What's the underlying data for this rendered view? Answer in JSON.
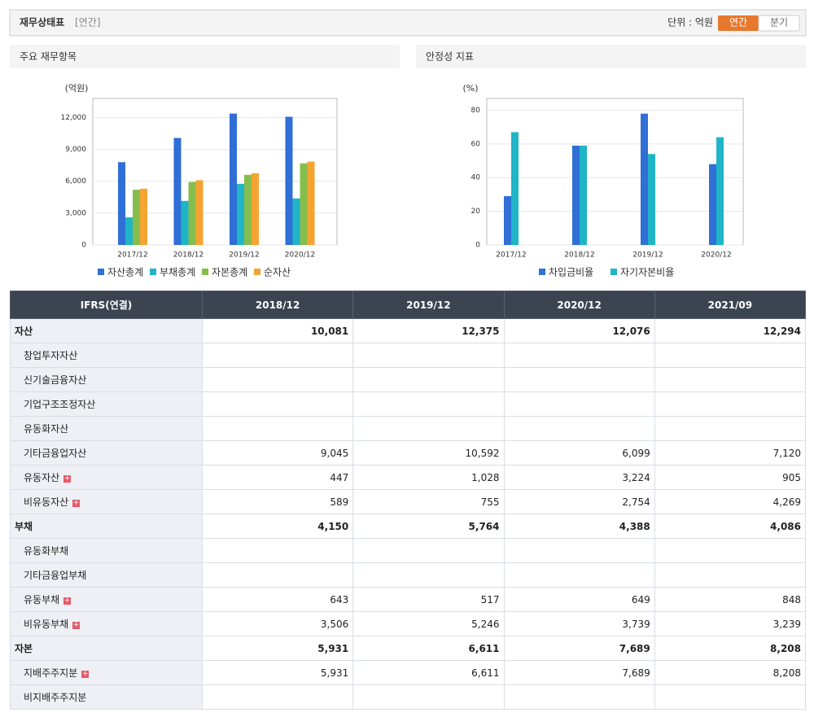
{
  "header": {
    "title": "재무상태표",
    "period": "[연간]",
    "unit": "단위 : 억원",
    "tabs": [
      "연간",
      "분기"
    ]
  },
  "chart_data": [
    {
      "type": "bar",
      "title": "주요 재무항목",
      "ylabel": "(억원)",
      "categories": [
        "2017/12",
        "2018/12",
        "2019/12",
        "2020/12"
      ],
      "series": [
        {
          "name": "자산총계",
          "color": "#2f6fd6",
          "values": [
            7800,
            10081,
            12375,
            12076
          ]
        },
        {
          "name": "부채총계",
          "color": "#1fb5c7",
          "values": [
            2600,
            4150,
            5764,
            4388
          ]
        },
        {
          "name": "자본총계",
          "color": "#86bd4d",
          "values": [
            5200,
            5931,
            6611,
            7689
          ]
        },
        {
          "name": "순자산",
          "color": "#f5a431",
          "values": [
            5300,
            6100,
            6750,
            7850
          ]
        }
      ],
      "ylim": [
        0,
        13800
      ],
      "yticks": [
        0,
        {
          "value": 3000,
          "label": "3,000"
        },
        {
          "value": 6000,
          "label": "6,000"
        },
        {
          "value": 9000,
          "label": "9,000"
        },
        {
          "value": 12000,
          "label": "12,000"
        }
      ],
      "grid": true
    },
    {
      "type": "bar",
      "title": "안정성 지표",
      "ylabel": "(%)",
      "categories": [
        "2017/12",
        "2018/12",
        "2019/12",
        "2020/12"
      ],
      "series": [
        {
          "name": "차입금비율",
          "color": "#2f6fd6",
          "values": [
            29,
            59,
            78,
            48
          ]
        },
        {
          "name": "자기자본비율",
          "color": "#1fb5c7",
          "values": [
            67,
            59,
            54,
            64
          ]
        }
      ],
      "ylim": [
        0,
        87
      ],
      "yticks": [
        0,
        20,
        40,
        60,
        80
      ],
      "grid": true
    }
  ],
  "table": {
    "columns": [
      "IFRS(연결)",
      "2018/12",
      "2019/12",
      "2020/12",
      "2021/09"
    ],
    "rows": [
      [
        "자산",
        "10,081",
        "12,375",
        "12,076",
        "12,294"
      ],
      [
        "창업투자자산",
        null,
        null,
        null,
        null
      ],
      [
        "신기술금융자산",
        null,
        null,
        null,
        null
      ],
      [
        "기업구조조정자산",
        null,
        null,
        null,
        null
      ],
      [
        "유동화자산",
        null,
        null,
        null,
        null
      ],
      [
        "기타금융업자산",
        "9,045",
        "10,592",
        "6,099",
        "7,120"
      ],
      [
        "유동자산",
        "447",
        "1,028",
        "3,224",
        "905"
      ],
      [
        "비유동자산",
        "589",
        "755",
        "2,754",
        "4,269"
      ],
      [
        "부채",
        "4,150",
        "5,764",
        "4,388",
        "4,086"
      ],
      [
        "유동화부채",
        null,
        null,
        null,
        null
      ],
      [
        "기타금융업부채",
        null,
        null,
        null,
        null
      ],
      [
        "유동부채",
        "643",
        "517",
        "649",
        "848"
      ],
      [
        "비유동부채",
        "3,506",
        "5,246",
        "3,739",
        "3,239"
      ],
      [
        "자본",
        "5,931",
        "6,611",
        "7,689",
        "8,208"
      ],
      [
        "지배주주지분",
        "5,931",
        "6,611",
        "7,689",
        "8,208"
      ],
      [
        "비지배주주지분",
        null,
        null,
        null,
        null
      ]
    ]
  }
}
